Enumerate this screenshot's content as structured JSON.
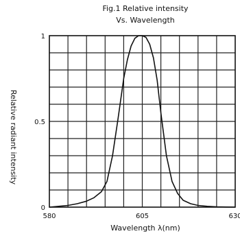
{
  "chart_data": {
    "type": "line",
    "title_lines": [
      "Fig.1 Relative intensity",
      "Vs. Wavelength"
    ],
    "xlabel": "Wavelength λ(nm)",
    "ylabel": "Relative radiant intensity",
    "xlim": [
      580,
      630
    ],
    "ylim": [
      0,
      1
    ],
    "x_ticks": [
      580,
      605,
      630
    ],
    "x_tick_labels": [
      "580",
      "605",
      "630"
    ],
    "y_ticks": [
      0,
      0.5,
      1
    ],
    "y_tick_labels": [
      "0",
      "0.5",
      "1"
    ],
    "grid": true,
    "x_grid_divisions": 10,
    "y_grid_divisions": 10,
    "series": [
      {
        "color": "#111111",
        "x": [
          580,
          582.5,
          585,
          587.5,
          590,
          592,
          594,
          595.5,
          597,
          598.5,
          600,
          601,
          602,
          603,
          604,
          605,
          606,
          607,
          608,
          609,
          610,
          611.5,
          613,
          614.5,
          616,
          618,
          620,
          622.5,
          625,
          627.5,
          630
        ],
        "y": [
          0,
          0.005,
          0.01,
          0.02,
          0.035,
          0.055,
          0.09,
          0.15,
          0.3,
          0.52,
          0.75,
          0.86,
          0.94,
          0.985,
          1.0,
          1.0,
          0.99,
          0.95,
          0.87,
          0.74,
          0.55,
          0.3,
          0.15,
          0.08,
          0.04,
          0.02,
          0.01,
          0.005,
          0.002,
          0.001,
          0
        ]
      }
    ]
  }
}
